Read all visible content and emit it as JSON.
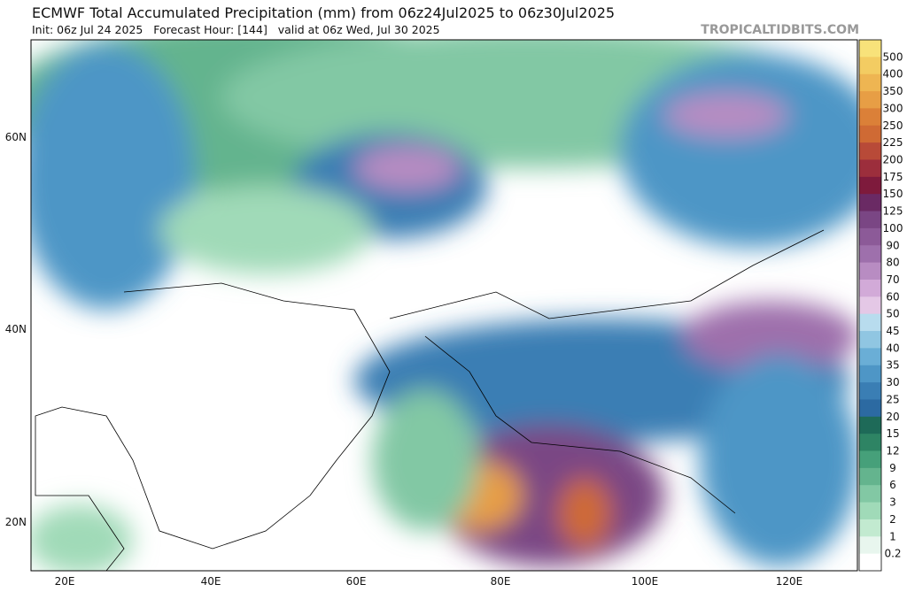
{
  "header": {
    "title": "ECMWF Total Accumulated Precipitation (mm) from 06z24Jul2025 to 06z30Jul2025",
    "subtitle": "Init: 06z Jul 24 2025   Forecast Hour: [144]   valid at 06z Wed, Jul 30 2025",
    "watermark": "TROPICALTIDBITS.COM"
  },
  "map": {
    "lat_labels": [
      "60N",
      "40N",
      "20N"
    ],
    "lon_labels": [
      "20E",
      "40E",
      "60E",
      "80E",
      "100E",
      "120E"
    ]
  },
  "colorbar": {
    "levels": [
      "500",
      "400",
      "350",
      "300",
      "250",
      "225",
      "200",
      "175",
      "150",
      "125",
      "100",
      "90",
      "80",
      "70",
      "60",
      "50",
      "45",
      "40",
      "35",
      "30",
      "25",
      "20",
      "15",
      "12",
      "9",
      "6",
      "3",
      "2",
      "1",
      "0.2"
    ],
    "colors": [
      "#f8e27a",
      "#f3cc62",
      "#eeb552",
      "#e79e45",
      "#db8038",
      "#cf6a34",
      "#b84a38",
      "#9c2e3c",
      "#7e1a3c",
      "#6a2a64",
      "#7a4684",
      "#8c5a98",
      "#9e70ac",
      "#b88cc2",
      "#d2aad8",
      "#e4c8e6",
      "#b8dcee",
      "#90c6e2",
      "#6aaed6",
      "#4e96c6",
      "#3a7eb4",
      "#2c6aa2",
      "#1e6a58",
      "#2e8464",
      "#46a07a",
      "#64b48e",
      "#82c8a4",
      "#a0dab8",
      "#c2ead0",
      "#e8f6ee",
      "#ffffff"
    ]
  }
}
